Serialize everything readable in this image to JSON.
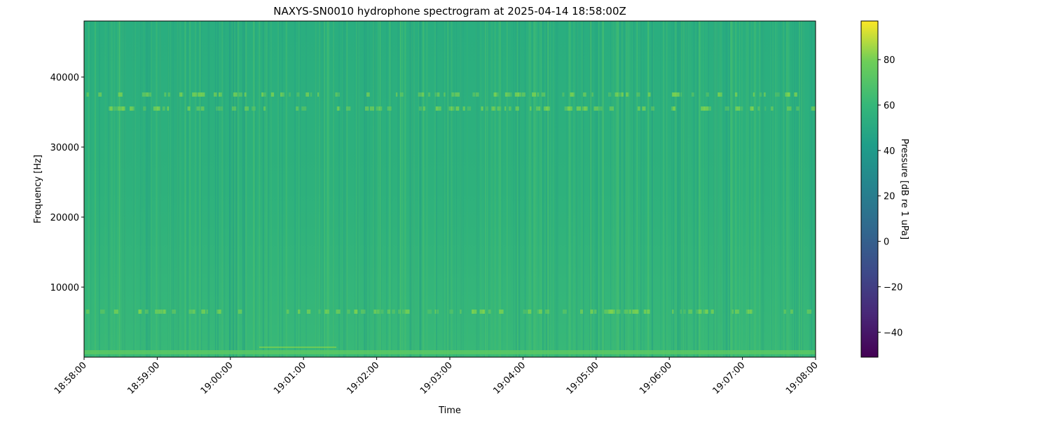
{
  "chart_data": {
    "type": "heatmap",
    "title": "NAXYS-SN0010 hydrophone spectrogram at 2025-04-14 18:58:00Z",
    "xlabel": "Time",
    "ylabel": "Frequency [Hz]",
    "x_ticks": [
      "18:58:00",
      "18:59:00",
      "19:00:00",
      "19:01:00",
      "19:02:00",
      "19:03:00",
      "19:04:00",
      "19:05:00",
      "19:06:00",
      "19:07:00",
      "19:08:00"
    ],
    "xlim": [
      "18:58:00",
      "19:08:00"
    ],
    "y_ticks": [
      10000,
      20000,
      30000,
      40000
    ],
    "y_tick_labels": [
      "10000",
      "20000",
      "30000",
      "40000"
    ],
    "ylim": [
      0,
      48000
    ],
    "colorbar": {
      "label": "Pressure [dB re 1 uPa]",
      "ticks": [
        -40,
        -20,
        0,
        20,
        40,
        60,
        80
      ],
      "tick_labels": [
        "−40",
        "−20",
        "0",
        "20",
        "40",
        "60",
        "80"
      ],
      "range": [
        -51,
        97
      ],
      "colormap": "viridis"
    },
    "typical_level_db": 45,
    "features": [
      {
        "description_label": "tonal band",
        "freq_hz": 6500,
        "level_db": 55
      },
      {
        "description_label": "tonal band",
        "freq_hz": 37500,
        "level_db": 50
      },
      {
        "description_label": "tonal band",
        "freq_hz": 35500,
        "level_db": 49
      },
      {
        "description_label": "low-frequency band",
        "freq_hz": 500,
        "level_db": 58
      }
    ]
  }
}
